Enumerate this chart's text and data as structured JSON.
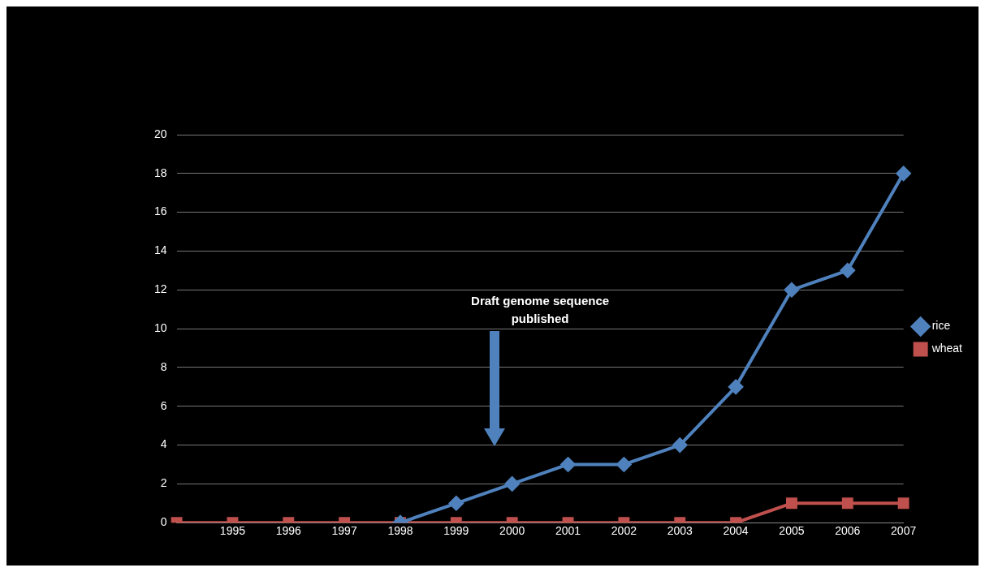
{
  "chart_data": {
    "type": "line",
    "categories": [
      null,
      "1995",
      "1996",
      "1997",
      "1998",
      "1999",
      "2000",
      "2001",
      "2002",
      "2003",
      "2004",
      "2005",
      "2006",
      "2007"
    ],
    "series": [
      {
        "name": "rice",
        "color": "#4f81bd",
        "marker": "diamond",
        "values": [
          null,
          null,
          null,
          null,
          0,
          1,
          2,
          3,
          3,
          4,
          7,
          12,
          13,
          18
        ]
      },
      {
        "name": "wheat",
        "color": "#c0504d",
        "marker": "square",
        "values": [
          0,
          0,
          0,
          0,
          0,
          0,
          0,
          0,
          0,
          0,
          0,
          1,
          1,
          1
        ]
      }
    ],
    "ylim": [
      0,
      20
    ],
    "yticks": [
      0,
      2,
      4,
      6,
      8,
      10,
      12,
      14,
      16,
      18,
      20
    ],
    "grid": "y",
    "legend": "right",
    "annotations": [
      "Draft genome sequence published"
    ]
  }
}
